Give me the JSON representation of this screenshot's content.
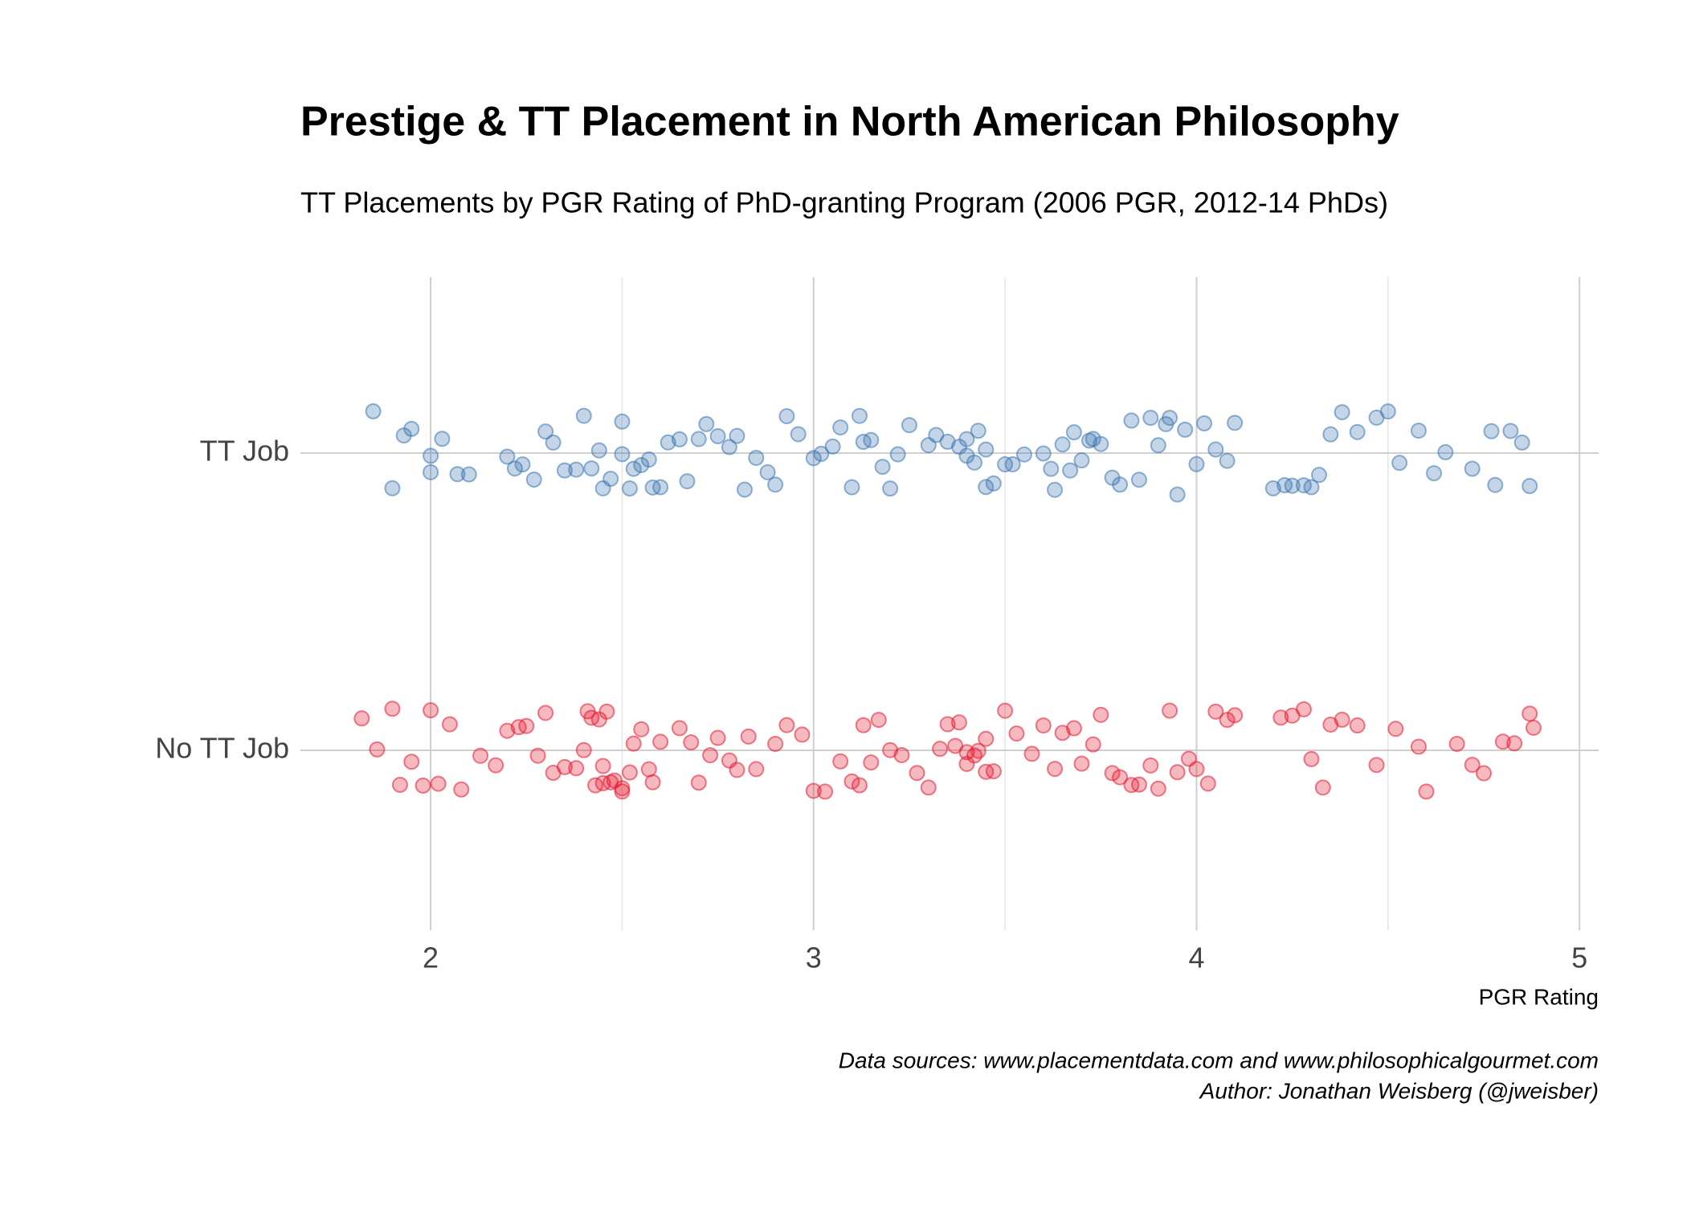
{
  "chart_data": {
    "type": "strip",
    "title": "Prestige & TT Placement in North American Philosophy",
    "subtitle": "TT Placements by PGR Rating of PhD-granting Program (2006 PGR, 2012-14 PhDs)",
    "x_label": "PGR Rating",
    "caption": [
      "Data sources: www.placementdata.com and www.philosophicalgourmet.com",
      "Author: Jonathan Weisberg (@jweisber)"
    ],
    "xlim": [
      1.66,
      5.05
    ],
    "xticks": [
      2,
      3,
      4,
      5
    ],
    "x_minor_ticks": [
      2.5,
      3.5,
      4.5
    ],
    "grid": true,
    "groups": [
      {
        "label": "TT Job",
        "color": "#3a74b0",
        "values": [
          1.85,
          1.9,
          1.93,
          1.95,
          2.0,
          2.0,
          2.03,
          2.07,
          2.1,
          2.2,
          2.22,
          2.24,
          2.27,
          2.3,
          2.32,
          2.35,
          2.38,
          2.4,
          2.42,
          2.44,
          2.45,
          2.47,
          2.5,
          2.5,
          2.52,
          2.53,
          2.55,
          2.57,
          2.58,
          2.6,
          2.62,
          2.65,
          2.67,
          2.7,
          2.72,
          2.75,
          2.78,
          2.8,
          2.82,
          2.85,
          2.88,
          2.9,
          2.93,
          2.96,
          3.0,
          3.02,
          3.05,
          3.07,
          3.1,
          3.12,
          3.13,
          3.15,
          3.18,
          3.2,
          3.22,
          3.25,
          3.3,
          3.32,
          3.35,
          3.38,
          3.4,
          3.4,
          3.42,
          3.43,
          3.45,
          3.45,
          3.47,
          3.5,
          3.52,
          3.55,
          3.6,
          3.62,
          3.63,
          3.65,
          3.67,
          3.68,
          3.7,
          3.72,
          3.73,
          3.75,
          3.78,
          3.8,
          3.83,
          3.85,
          3.88,
          3.9,
          3.92,
          3.93,
          3.95,
          3.97,
          4.0,
          4.02,
          4.05,
          4.08,
          4.1,
          4.2,
          4.23,
          4.25,
          4.28,
          4.3,
          4.32,
          4.35,
          4.38,
          4.42,
          4.47,
          4.5,
          4.53,
          4.58,
          4.62,
          4.65,
          4.72,
          4.77,
          4.78,
          4.82,
          4.85,
          4.87
        ]
      },
      {
        "label": "No TT Job",
        "color": "#e3182d",
        "values": [
          1.82,
          1.86,
          1.9,
          1.92,
          1.95,
          1.98,
          2.0,
          2.02,
          2.05,
          2.08,
          2.13,
          2.17,
          2.2,
          2.23,
          2.25,
          2.28,
          2.3,
          2.32,
          2.35,
          2.38,
          2.4,
          2.41,
          2.42,
          2.43,
          2.44,
          2.45,
          2.45,
          2.46,
          2.47,
          2.48,
          2.5,
          2.5,
          2.52,
          2.53,
          2.55,
          2.57,
          2.58,
          2.6,
          2.65,
          2.68,
          2.7,
          2.73,
          2.75,
          2.78,
          2.8,
          2.83,
          2.85,
          2.9,
          2.93,
          2.97,
          3.0,
          3.03,
          3.07,
          3.1,
          3.12,
          3.13,
          3.15,
          3.17,
          3.2,
          3.23,
          3.27,
          3.3,
          3.33,
          3.35,
          3.37,
          3.38,
          3.4,
          3.4,
          3.42,
          3.43,
          3.45,
          3.45,
          3.47,
          3.5,
          3.53,
          3.57,
          3.6,
          3.63,
          3.65,
          3.68,
          3.7,
          3.73,
          3.75,
          3.78,
          3.8,
          3.83,
          3.85,
          3.88,
          3.9,
          3.93,
          3.95,
          3.98,
          4.0,
          4.03,
          4.05,
          4.08,
          4.1,
          4.22,
          4.25,
          4.28,
          4.3,
          4.33,
          4.35,
          4.38,
          4.42,
          4.47,
          4.52,
          4.58,
          4.6,
          4.68,
          4.72,
          4.75,
          4.8,
          4.83,
          4.87,
          4.88
        ]
      }
    ]
  }
}
